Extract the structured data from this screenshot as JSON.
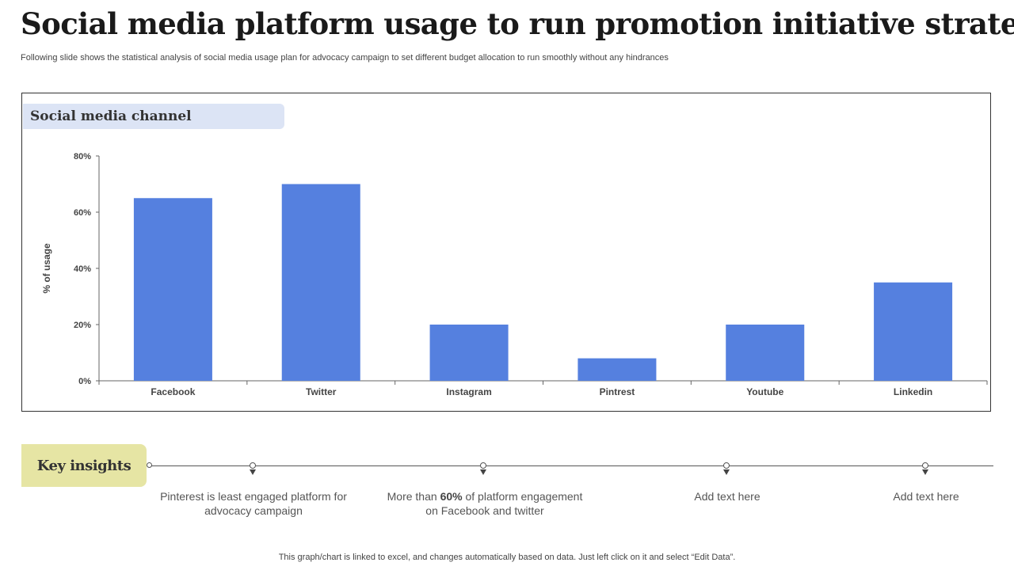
{
  "title": "Social media platform usage to run promotion initiative strategy",
  "subtitle": "Following slide shows the statistical  analysis of social media usage plan for advocacy campaign to set different budget allocation to run smoothly without any hindrances",
  "chart_label": "Social media channel",
  "chart_data": {
    "type": "bar",
    "categories": [
      "Facebook",
      "Twitter",
      "Instagram",
      "Pintrest",
      "Youtube",
      "Linkedin"
    ],
    "values": [
      65,
      70,
      20,
      8,
      20,
      35
    ],
    "ylabel": "% of usage",
    "ylim": [
      0,
      80
    ],
    "yticks": [
      0,
      20,
      40,
      60,
      80
    ],
    "ytick_labels": [
      "0%",
      "20%",
      "40%",
      "60%",
      "80%"
    ],
    "bar_color": "#5580df",
    "grid": false,
    "legend": "none"
  },
  "key_insights": {
    "label": "Key insights",
    "items": [
      {
        "text": "Pinterest  is least engaged platform for advocacy campaign"
      },
      {
        "pre": "More than ",
        "bold": "60%",
        "post": " of platform engagement on Facebook and twitter"
      },
      {
        "text": "Add text here"
      },
      {
        "text": "Add text here"
      }
    ]
  },
  "footer": "This graph/chart is linked to excel, and changes automatically based on data. Just left click on it and select “Edit Data”."
}
